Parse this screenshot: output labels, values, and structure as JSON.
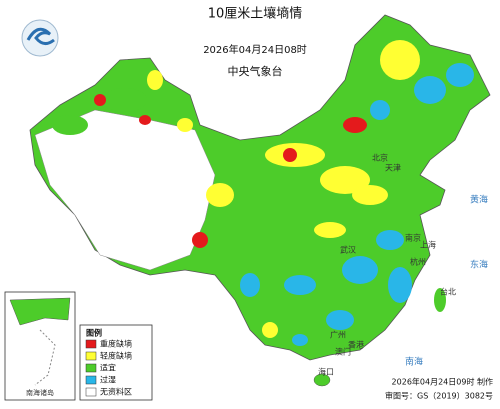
{
  "header": {
    "title": "10厘米土壤墒情",
    "time": "2026年04月24日08时",
    "agency": "中央气象台"
  },
  "legend": {
    "title": "图例",
    "items": [
      {
        "label": "重度缺墒",
        "color": "#e41a1c"
      },
      {
        "label": "轻度缺墒",
        "color": "#ffff33"
      },
      {
        "label": "适宜",
        "color": "#4dcc2a"
      },
      {
        "label": "过湿",
        "color": "#29b6e8"
      },
      {
        "label": "无资料区",
        "color": "#ffffff"
      }
    ]
  },
  "inset": {
    "label": "南海诸岛"
  },
  "map_labels": [
    "北京",
    "天津",
    "上海",
    "南京",
    "杭州",
    "武汉",
    "广州",
    "香港",
    "澳门",
    "台北",
    "海口",
    "黄海",
    "东海",
    "南海"
  ],
  "footer": {
    "made": "2026年04月24日09时 制作",
    "approval": "审图号：GS（2019）3082号"
  }
}
